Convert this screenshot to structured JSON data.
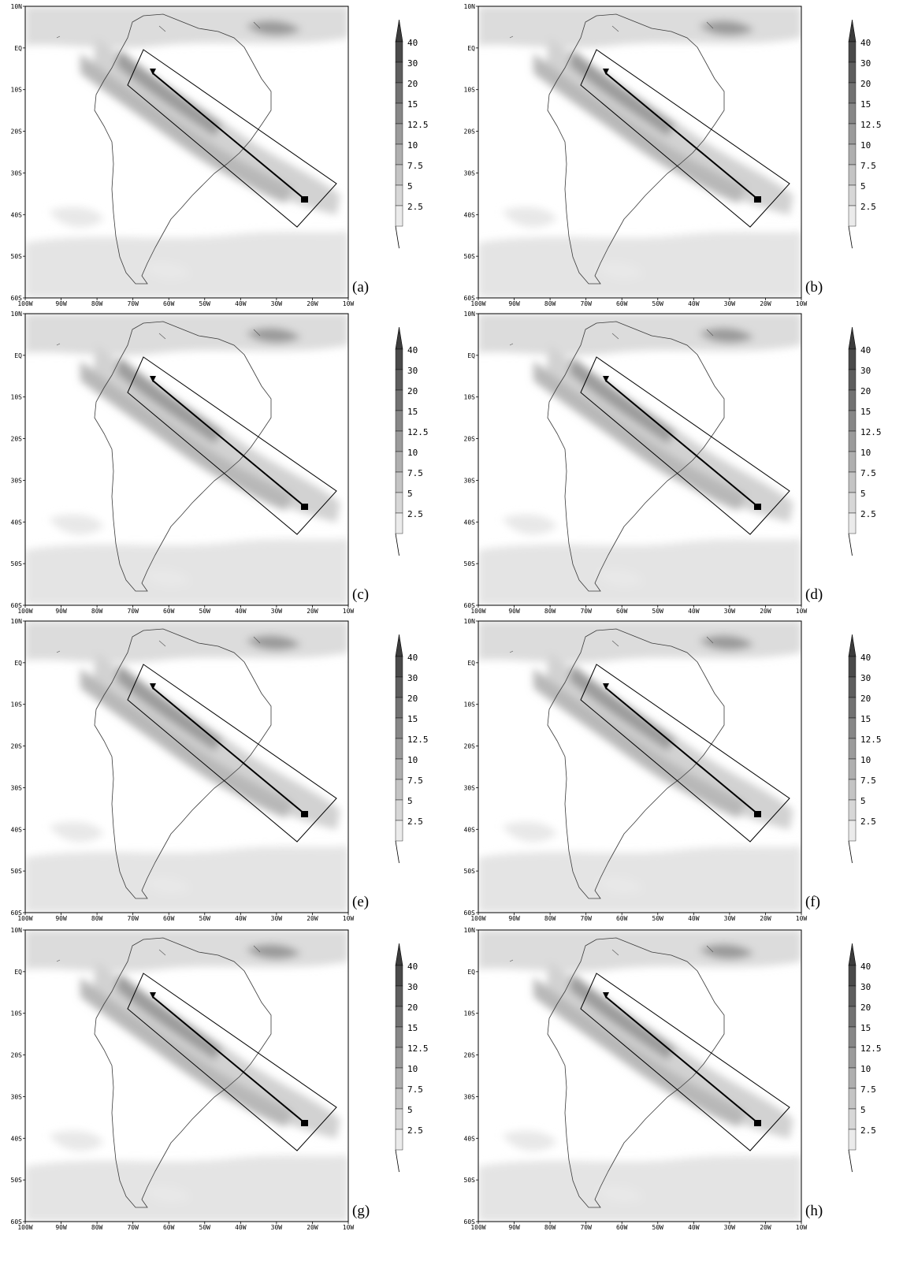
{
  "figure": {
    "panels": [
      {
        "label": "(a)"
      },
      {
        "label": "(b)"
      },
      {
        "label": "(c)"
      },
      {
        "label": "(d)"
      },
      {
        "label": "(e)"
      },
      {
        "label": "(f)"
      },
      {
        "label": "(g)"
      },
      {
        "label": "(h)"
      }
    ],
    "x_ticks": [
      "100W",
      "90W",
      "80W",
      "70W",
      "60W",
      "50W",
      "40W",
      "30W",
      "20W",
      "10W"
    ],
    "y_ticks": [
      "10N",
      "EQ",
      "10S",
      "20S",
      "30S",
      "40S",
      "50S",
      "60S"
    ],
    "colorbar": {
      "labels": [
        "40",
        "30",
        "20",
        "15",
        "12.5",
        "10",
        "7.5",
        "5",
        "2.5"
      ],
      "colors": [
        "#4a4a4a",
        "#5e5e5e",
        "#727272",
        "#878787",
        "#9b9b9b",
        "#afafaf",
        "#c4c4c4",
        "#d7d7d7",
        "#ebebeb"
      ]
    },
    "transect": {
      "start": {
        "lon": -67,
        "lat": -5
      },
      "end": {
        "lon": -25,
        "lat": -35
      },
      "box_corners": [
        {
          "lon": -60,
          "lat": -1
        },
        {
          "lon": -18,
          "lat": -30
        },
        {
          "lon": -34,
          "lat": -41
        },
        {
          "lon": -76,
          "lat": -10
        }
      ]
    }
  },
  "chart_data": {
    "type": "contour-map",
    "xlim": [
      "100W",
      "10W"
    ],
    "ylim": [
      "60S",
      "10N"
    ],
    "levels": [
      2.5,
      5,
      7.5,
      10,
      12.5,
      15,
      20,
      30,
      40
    ],
    "panels": [
      "(a)",
      "(b)",
      "(c)",
      "(d)",
      "(e)",
      "(f)",
      "(g)",
      "(h)"
    ]
  }
}
